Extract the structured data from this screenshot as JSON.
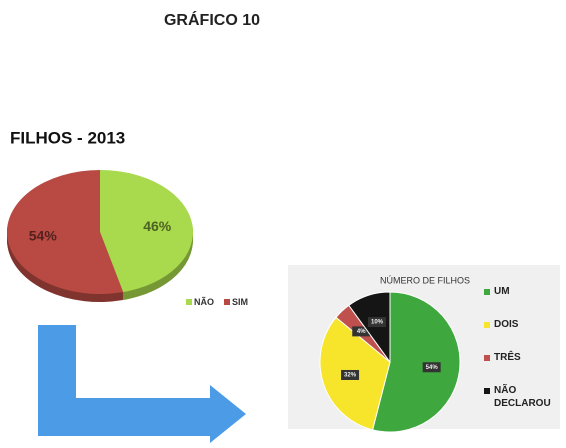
{
  "header": {
    "title": "GRÁFICO 10"
  },
  "chart_data": [
    {
      "type": "pie",
      "title": "FILHOS - 2013",
      "categories": [
        "NÃO",
        "SIM"
      ],
      "values": [
        46,
        54
      ],
      "value_labels": [
        "46%",
        "54%"
      ],
      "colors": [
        "#a9d94c",
        "#b84a43"
      ]
    },
    {
      "type": "pie",
      "title": "NÚMERO DE FILHOS",
      "categories": [
        "UM",
        "DOIS",
        "TRÊS",
        "NÃO DECLAROU"
      ],
      "values": [
        54,
        32,
        4,
        10
      ],
      "value_labels": [
        "54%",
        "32%",
        "4%",
        "10%"
      ],
      "colors": [
        "#3ea83e",
        "#f6e52a",
        "#c0504d",
        "#151515"
      ]
    }
  ]
}
